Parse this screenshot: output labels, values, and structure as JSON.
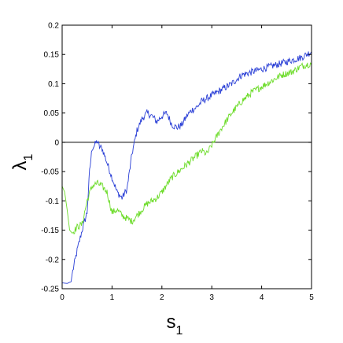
{
  "chart_data": {
    "type": "line",
    "title": "",
    "xlabel": "s",
    "xlabel_subscript": "1",
    "ylabel": "λ",
    "ylabel_subscript": "1",
    "xlim": [
      0,
      5
    ],
    "ylim": [
      -0.25,
      0.2
    ],
    "x_ticks": [
      0,
      1,
      2,
      3,
      4,
      5
    ],
    "x_tick_labels": [
      "0",
      "1",
      "2",
      "3",
      "4",
      "5"
    ],
    "y_ticks": [
      -0.25,
      -0.2,
      -0.15,
      -0.1,
      -0.05,
      0,
      0.05,
      0.1,
      0.15,
      0.2
    ],
    "y_tick_labels": [
      "-0.25",
      "-0.2",
      "-0.15",
      "-0.1",
      "-0.05",
      "0",
      "0.05",
      "0.1",
      "0.15",
      "0.2"
    ],
    "grid": false,
    "reference_line_y": 0,
    "series": [
      {
        "color": "#2a3fd6",
        "x": [
          0,
          0.1,
          0.18,
          0.2,
          0.3,
          0.4,
          0.5,
          0.55,
          0.6,
          0.65,
          0.7,
          0.75,
          0.8,
          0.9,
          1.0,
          1.1,
          1.2,
          1.3,
          1.4,
          1.45,
          1.5,
          1.6,
          1.7,
          1.8,
          1.9,
          2.0,
          2.1,
          2.2,
          2.3,
          2.4,
          2.5,
          2.6,
          2.7,
          2.8,
          2.9,
          3.0,
          3.2,
          3.4,
          3.6,
          3.8,
          4.0,
          4.2,
          4.4,
          4.6,
          4.8,
          4.9,
          5.0
        ],
        "values": [
          -0.24,
          -0.241,
          -0.238,
          -0.225,
          -0.185,
          -0.15,
          -0.12,
          -0.05,
          -0.01,
          -0.005,
          0.002,
          -0.008,
          -0.01,
          -0.035,
          -0.06,
          -0.085,
          -0.095,
          -0.08,
          -0.02,
          0.0,
          0.02,
          0.04,
          0.05,
          0.045,
          0.035,
          0.045,
          0.05,
          0.03,
          0.025,
          0.03,
          0.045,
          0.055,
          0.06,
          0.07,
          0.075,
          0.08,
          0.09,
          0.1,
          0.115,
          0.12,
          0.125,
          0.13,
          0.135,
          0.14,
          0.145,
          0.15,
          0.155
        ]
      },
      {
        "color": "#6ddc2a",
        "x": [
          0,
          0.05,
          0.1,
          0.15,
          0.2,
          0.3,
          0.4,
          0.5,
          0.6,
          0.7,
          0.8,
          0.9,
          1.0,
          1.1,
          1.2,
          1.3,
          1.4,
          1.5,
          1.6,
          1.7,
          1.8,
          1.9,
          2.0,
          2.2,
          2.4,
          2.6,
          2.8,
          2.9,
          3.0,
          3.2,
          3.4,
          3.6,
          3.8,
          4.0,
          4.2,
          4.4,
          4.6,
          4.8,
          5.0
        ],
        "values": [
          -0.075,
          -0.085,
          -0.115,
          -0.15,
          -0.155,
          -0.145,
          -0.14,
          -0.1,
          -0.075,
          -0.07,
          -0.075,
          -0.085,
          -0.12,
          -0.115,
          -0.125,
          -0.13,
          -0.135,
          -0.125,
          -0.115,
          -0.105,
          -0.1,
          -0.095,
          -0.085,
          -0.06,
          -0.045,
          -0.03,
          -0.015,
          -0.02,
          -0.005,
          0.025,
          0.05,
          0.07,
          0.085,
          0.095,
          0.105,
          0.115,
          0.12,
          0.13,
          0.135
        ]
      }
    ]
  }
}
